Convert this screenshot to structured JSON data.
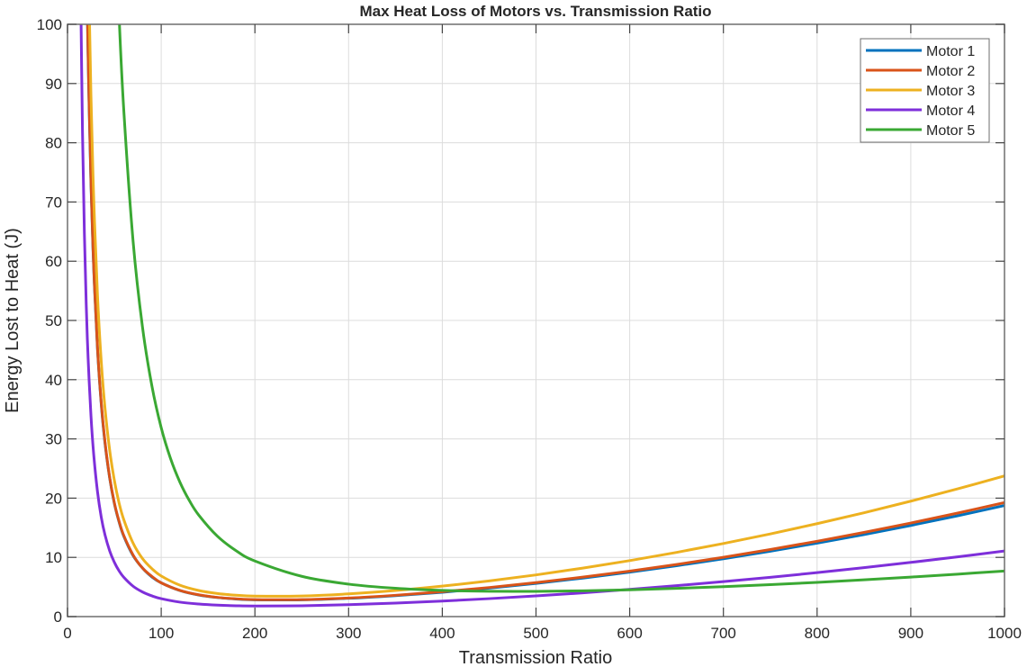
{
  "chart_data": {
    "type": "line",
    "title": "Max Heat Loss of Motors vs. Transmission Ratio",
    "xlabel": "Transmission Ratio",
    "ylabel": "Energy Lost to Heat (J)",
    "xlim": [
      0,
      1000
    ],
    "ylim": [
      0,
      100
    ],
    "xticks": [
      0,
      100,
      200,
      300,
      400,
      500,
      600,
      700,
      800,
      900,
      1000
    ],
    "yticks": [
      0,
      10,
      20,
      30,
      40,
      50,
      60,
      70,
      80,
      90,
      100
    ],
    "grid": true,
    "legend_position": "upper right",
    "series": [
      {
        "name": "Motor 1",
        "color": "#0072BD",
        "x": [
          20,
          22,
          25,
          28,
          32,
          36,
          40,
          45,
          50,
          55,
          60,
          70,
          80,
          90,
          100,
          120,
          140,
          160,
          180,
          200,
          250,
          300,
          350,
          400,
          450,
          500,
          550,
          600,
          650,
          700,
          750,
          800,
          850,
          900,
          950,
          1000
        ],
        "y": [
          114,
          94.4,
          73.3,
          58.7,
          45.2,
          35.9,
          29.3,
          23.4,
          19.1,
          16.0,
          13.6,
          10.3,
          8.2,
          6.7,
          5.7,
          4.4,
          3.65,
          3.22,
          2.97,
          2.84,
          2.83,
          3.09,
          3.54,
          4.11,
          4.81,
          5.61,
          6.5,
          7.5,
          8.59,
          9.77,
          11.04,
          12.4,
          13.85,
          15.39,
          17.02,
          18.75
        ]
      },
      {
        "name": "Motor 2",
        "color": "#D95319",
        "x": [
          20,
          22,
          25,
          28,
          32,
          36,
          40,
          45,
          50,
          55,
          60,
          70,
          80,
          90,
          100,
          120,
          140,
          160,
          180,
          200,
          250,
          300,
          350,
          400,
          450,
          500,
          550,
          600,
          650,
          700,
          750,
          800,
          850,
          900,
          950,
          1000
        ],
        "y": [
          114.8,
          95.0,
          73.8,
          59.0,
          45.4,
          36.1,
          29.5,
          23.5,
          19.2,
          16.1,
          13.7,
          10.4,
          8.2,
          6.8,
          5.7,
          4.42,
          3.68,
          3.24,
          3.0,
          2.87,
          2.87,
          3.14,
          3.6,
          4.2,
          4.91,
          5.73,
          6.66,
          7.68,
          8.8,
          10.01,
          11.32,
          12.72,
          14.21,
          15.8,
          17.48,
          19.25
        ]
      },
      {
        "name": "Motor 3",
        "color": "#EDB120",
        "x": [
          22,
          25,
          28,
          32,
          36,
          40,
          45,
          50,
          55,
          60,
          70,
          80,
          90,
          100,
          120,
          140,
          160,
          180,
          200,
          250,
          300,
          350,
          400,
          450,
          500,
          550,
          600,
          650,
          700,
          750,
          800,
          850,
          900,
          950,
          1000
        ],
        "y": [
          113.4,
          88.1,
          70.5,
          54.2,
          43.1,
          35.2,
          28.1,
          23.0,
          19.2,
          16.4,
          12.4,
          9.8,
          8.1,
          6.86,
          5.3,
          4.41,
          3.9,
          3.61,
          3.46,
          3.48,
          3.83,
          4.4,
          5.14,
          6.02,
          7.04,
          8.19,
          9.45,
          10.84,
          12.34,
          13.95,
          15.69,
          17.53,
          19.49,
          21.57,
          23.75
        ]
      },
      {
        "name": "Motor 4",
        "color": "#7E2FDA",
        "x": [
          14,
          16,
          18,
          20,
          22,
          25,
          28,
          32,
          36,
          40,
          45,
          50,
          55,
          60,
          70,
          80,
          90,
          100,
          120,
          140,
          160,
          180,
          200,
          250,
          300,
          350,
          400,
          450,
          500,
          550,
          600,
          650,
          700,
          750,
          800,
          850,
          900,
          950,
          1000
        ],
        "y": [
          106.5,
          81.7,
          64.8,
          52.6,
          43.6,
          34.0,
          27.3,
          21.1,
          16.8,
          13.8,
          11.1,
          9.17,
          7.73,
          6.65,
          5.13,
          4.16,
          3.5,
          3.03,
          2.44,
          2.12,
          1.93,
          1.83,
          1.79,
          1.83,
          2.01,
          2.28,
          2.62,
          3.03,
          3.49,
          4.01,
          4.59,
          5.22,
          5.9,
          6.63,
          7.42,
          8.26,
          9.15,
          10.09,
          11.08
        ]
      },
      {
        "name": "Motor 5",
        "color": "#3AA833",
        "x": [
          50,
          55,
          60,
          70,
          80,
          90,
          100,
          110,
          120,
          130,
          140,
          160,
          180,
          200,
          250,
          300,
          350,
          400,
          450,
          500,
          550,
          600,
          650,
          700,
          750,
          800,
          850,
          900,
          950,
          1000
        ],
        "y": [
          122.6,
          101.6,
          85.65,
          63.36,
          48.9,
          39.0,
          31.9,
          26.67,
          22.69,
          19.6,
          17.15,
          13.57,
          11.12,
          9.39,
          6.8,
          5.48,
          4.78,
          4.42,
          4.27,
          4.26,
          4.35,
          4.53,
          4.77,
          5.06,
          5.4,
          5.78,
          6.21,
          6.67,
          7.17,
          7.7
        ]
      }
    ]
  }
}
